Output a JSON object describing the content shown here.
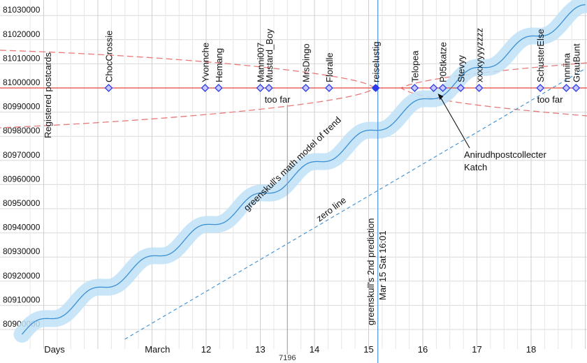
{
  "chart_data": {
    "type": "line",
    "y_ticks": [
      80900000,
      80910000,
      80920000,
      80930000,
      80940000,
      80950000,
      80960000,
      80970000,
      80980000,
      80990000,
      81000000,
      81010000,
      81020000,
      81030000
    ],
    "x_ticks": [
      {
        "label": "Days",
        "day": 9.2
      },
      {
        "label": "March",
        "day": 11.1
      },
      {
        "label": "12",
        "day": 12
      },
      {
        "label": "13",
        "day": 13
      },
      {
        "label": "14",
        "day": 14
      },
      {
        "label": "15",
        "day": 15
      },
      {
        "label": "16",
        "day": 16
      },
      {
        "label": "17",
        "day": 17
      },
      {
        "label": "18",
        "day": 18
      }
    ],
    "x_range": [
      8.6,
      19.0
    ],
    "y_range": [
      80896000,
      81033000
    ],
    "target": {
      "value": 81000000,
      "label": "Registered postcards"
    },
    "trend": {
      "label": "greenskull's math model of trend",
      "start_day": 8.6,
      "end_day": 19.0,
      "start_value": 80898000,
      "slope_per_day": 13000,
      "wave_amplitude": 2200,
      "wave_period_days": 1.0
    },
    "zero_line": {
      "label": "zero line",
      "start": [
        10.5,
        80896000
      ],
      "end": [
        19.0,
        81008000
      ]
    },
    "prediction": {
      "label_line1": "greenskull's 2nd prediction",
      "label_line2": "Mar 15 Sat 16:01",
      "day": 15.17
    },
    "marker_7196": {
      "label": "7196",
      "day": 13.5
    },
    "too_far_left": {
      "label": "too far",
      "day": 13.33,
      "value": 80996000
    },
    "too_far_right": {
      "label": "too far",
      "day": 18.37,
      "value": 80996000
    },
    "users": [
      {
        "name": "ChocCrossie",
        "day": 10.2
      },
      {
        "name": "Yvonnche",
        "day": 11.98
      },
      {
        "name": "Hemang",
        "day": 12.23
      },
      {
        "name": "Manni007",
        "day": 13.0
      },
      {
        "name": "Mustard_Boy",
        "day": 13.16
      },
      {
        "name": "MrsDingo",
        "day": 13.84
      },
      {
        "name": "Floralle",
        "day": 14.27
      },
      {
        "name": "reiselustig",
        "day": 15.13
      },
      {
        "name": "Telopea",
        "day": 15.85
      },
      {
        "name": "P05tkatze",
        "day": 16.37
      },
      {
        "name": "Stevyy",
        "day": 16.7
      },
      {
        "name": "xxxxyyyyzzzz",
        "day": 17.04
      },
      {
        "name": "SchusterElse",
        "day": 18.17
      },
      {
        "name": "nnniina",
        "day": 18.65
      },
      {
        "name": "GrauBunt",
        "day": 18.83
      }
    ],
    "hidden_users": [
      {
        "name": "Anirudhpostcollecter",
        "day": 16.2
      }
    ],
    "annotation": {
      "line1": "Anirudhpostcollecter",
      "line2": "Katch",
      "point_day": 16.2,
      "point_value": 81000000
    },
    "colors": {
      "grid": "#d9d9d9",
      "target_line": "#e8453c",
      "trend_line": "#3a8fd4",
      "trend_band": "#bfe2f7",
      "zero_line": "#3a8fd4",
      "prediction_line": "#5b9be0",
      "dashed_curve": "#e87a7a",
      "marker": "#2f3be8",
      "marker_fill": "#c9c9ff"
    }
  }
}
